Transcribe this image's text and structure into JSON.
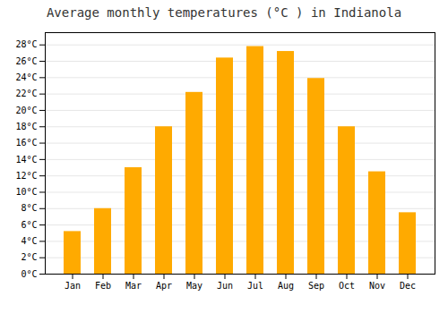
{
  "chart_data": {
    "type": "bar",
    "title": "Average monthly temperatures (°C ) in Indianola",
    "categories": [
      "Jan",
      "Feb",
      "Mar",
      "Apr",
      "May",
      "Jun",
      "Jul",
      "Aug",
      "Sep",
      "Oct",
      "Nov",
      "Dec"
    ],
    "values": [
      5.2,
      8.0,
      13.0,
      18.0,
      22.2,
      26.4,
      27.8,
      27.2,
      23.9,
      18.0,
      12.5,
      7.5
    ],
    "color": "#FFAA00",
    "ylim": [
      0,
      29.5
    ],
    "yticks": [
      {
        "value": 0,
        "label": "0°C"
      },
      {
        "value": 2,
        "label": "2°C"
      },
      {
        "value": 4,
        "label": "4°C"
      },
      {
        "value": 6,
        "label": "6°C"
      },
      {
        "value": 8,
        "label": "8°C"
      },
      {
        "value": 10,
        "label": "10°C"
      },
      {
        "value": 12,
        "label": "12°C"
      },
      {
        "value": 14,
        "label": "14°C"
      },
      {
        "value": 16,
        "label": "16°C"
      },
      {
        "value": 18,
        "label": "18°C"
      },
      {
        "value": 20,
        "label": "20°C"
      },
      {
        "value": 22,
        "label": "22°C"
      },
      {
        "value": 24,
        "label": "24°C"
      },
      {
        "value": 26,
        "label": "26°C"
      },
      {
        "value": 28,
        "label": "28°C"
      }
    ],
    "grid": true
  }
}
